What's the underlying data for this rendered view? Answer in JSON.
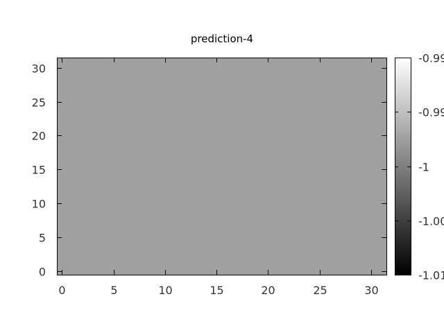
{
  "chart_data": {
    "type": "heatmap",
    "title": "prediction-4",
    "xlabel": "",
    "ylabel": "",
    "xlim": [
      -0.5,
      31.5
    ],
    "ylim": [
      -0.5,
      31.5
    ],
    "x_ticks": [
      0,
      5,
      10,
      15,
      20,
      25,
      30
    ],
    "y_ticks": [
      0,
      5,
      10,
      15,
      20,
      25,
      30
    ],
    "grid_size": [
      32,
      32
    ],
    "uniform_value": -1,
    "colorbar": {
      "colormap": "gray",
      "range": [
        -1.01,
        -0.99
      ],
      "ticks": [
        {
          "value": -0.99,
          "label": "-0.99"
        },
        {
          "value": -0.995,
          "label": "-0.99"
        },
        {
          "value": -1,
          "label": "-1"
        },
        {
          "value": -1.005,
          "label": "-1.00"
        },
        {
          "value": -1.01,
          "label": "-1.01"
        }
      ]
    },
    "cell_color": "#a0a0a0",
    "grid": false
  }
}
